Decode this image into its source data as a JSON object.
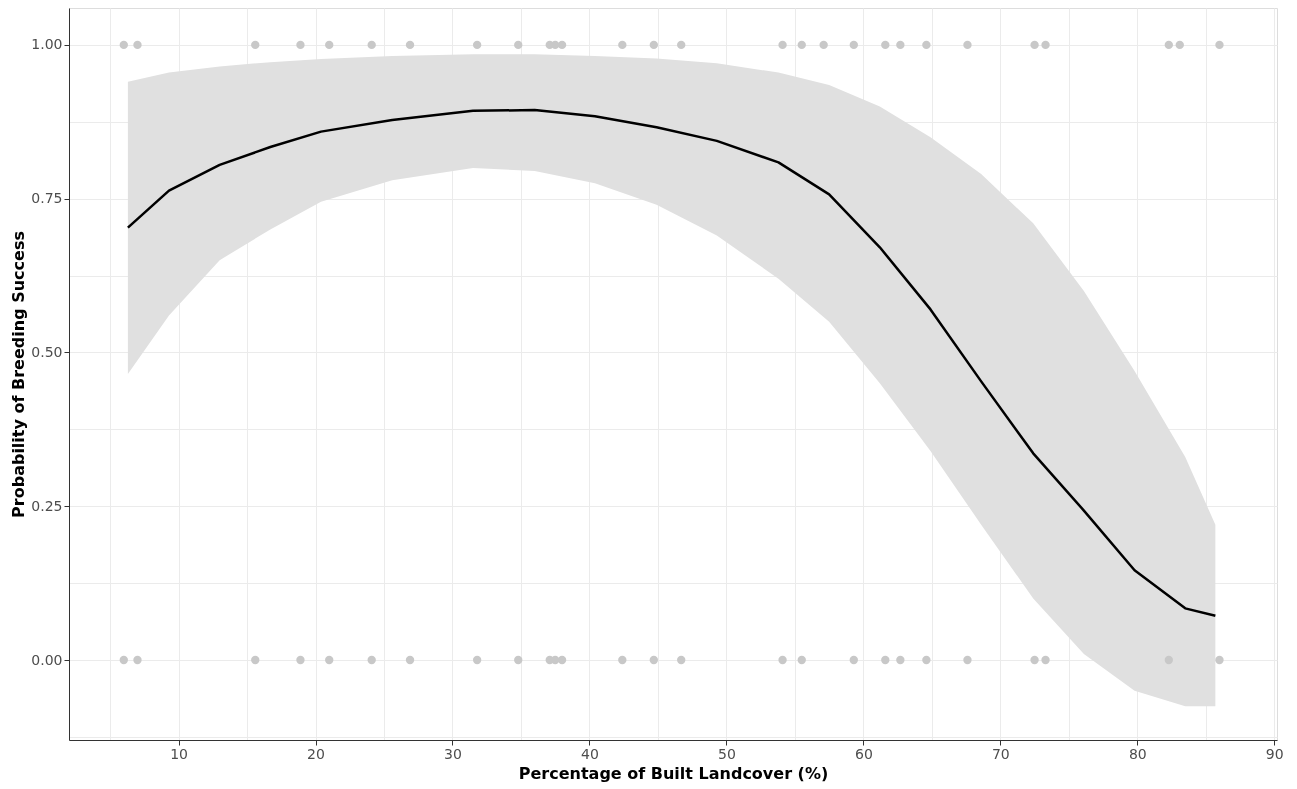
{
  "chart_data": {
    "type": "line",
    "xlabel": "Percentage of Built Landcover (%)",
    "ylabel": "Probability of Breeding Success",
    "xlim": [
      2,
      90.2
    ],
    "ylim": [
      -0.13,
      1.06
    ],
    "xticks": [
      {
        "value": 5,
        "label": null
      },
      10,
      {
        "value": 15,
        "label": null
      },
      20,
      {
        "value": 25,
        "label": null
      },
      30,
      {
        "value": 35,
        "label": null
      },
      40,
      {
        "value": 45,
        "label": null
      },
      50,
      {
        "value": 55,
        "label": null
      },
      60,
      {
        "value": 65,
        "label": null
      },
      70,
      {
        "value": 75,
        "label": null
      },
      80,
      {
        "value": 85,
        "label": null
      },
      90
    ],
    "yticks": [
      {
        "value": -0.125,
        "label": null
      },
      {
        "value": 0,
        "label": "0.00"
      },
      {
        "value": 0.125,
        "label": null
      },
      {
        "value": 0.25,
        "label": "0.25"
      },
      {
        "value": 0.375,
        "label": null
      },
      {
        "value": 0.5,
        "label": "0.50"
      },
      {
        "value": 0.625,
        "label": null
      },
      {
        "value": 0.75,
        "label": "0.75"
      },
      {
        "value": 0.875,
        "label": null
      },
      {
        "value": 1,
        "label": "1.00"
      }
    ],
    "grid": true,
    "line_style": "solid",
    "series": [
      {
        "color": "#000000",
        "marker": "none",
        "x": [
          6.3,
          9.3,
          13.0,
          16.7,
          20.4,
          25.6,
          31.5,
          36.0,
          40.4,
          44.9,
          49.3,
          53.8,
          57.5,
          61.2,
          64.9,
          68.6,
          72.4,
          76.1,
          79.8,
          83.5,
          85.7
        ],
        "values": [
          0.703,
          0.763,
          0.805,
          0.834,
          0.859,
          0.878,
          0.893,
          0.894,
          0.884,
          0.866,
          0.844,
          0.809,
          0.757,
          0.671,
          0.57,
          0.453,
          0.336,
          0.243,
          0.146,
          0.084,
          0.072
        ],
        "lower": [
          0.465,
          0.56,
          0.65,
          0.7,
          0.745,
          0.78,
          0.8,
          0.795,
          0.775,
          0.74,
          0.69,
          0.62,
          0.55,
          0.45,
          0.34,
          0.22,
          0.1,
          0.01,
          -0.05,
          -0.075,
          -0.075
        ],
        "upper": [
          0.94,
          0.955,
          0.965,
          0.972,
          0.977,
          0.982,
          0.985,
          0.985,
          0.982,
          0.978,
          0.97,
          0.955,
          0.935,
          0.9,
          0.85,
          0.79,
          0.71,
          0.6,
          0.47,
          0.33,
          0.22
        ]
      },
      {
        "type": "scatter",
        "color": "#c8c8c8",
        "marker": "circle",
        "x": [
          6.0,
          7.0,
          15.6,
          18.9,
          21.0,
          24.1,
          26.9,
          31.8,
          34.8,
          37.1,
          37.5,
          38.0,
          42.4,
          44.7,
          46.7,
          54.1,
          55.5,
          57.1,
          59.3,
          61.6,
          62.7,
          64.6,
          67.6,
          72.5,
          73.3,
          82.3,
          83.1,
          86.0
        ],
        "values": [
          1,
          1,
          1,
          1,
          1,
          1,
          1,
          1,
          1,
          1,
          1,
          1,
          1,
          1,
          1,
          1,
          1,
          1,
          1,
          1,
          1,
          1,
          1,
          1,
          1,
          1,
          1,
          1
        ]
      },
      {
        "type": "scatter",
        "color": "#c8c8c8",
        "marker": "circle",
        "x": [
          6.0,
          7.0,
          15.6,
          18.9,
          21.0,
          24.1,
          26.9,
          31.8,
          34.8,
          37.1,
          37.5,
          38.0,
          42.4,
          44.7,
          46.7,
          54.1,
          55.5,
          59.3,
          61.6,
          62.7,
          64.6,
          67.6,
          72.5,
          73.3,
          82.3,
          86.0
        ],
        "values": [
          0,
          0,
          0,
          0,
          0,
          0,
          0,
          0,
          0,
          0,
          0,
          0,
          0,
          0,
          0,
          0,
          0,
          0,
          0,
          0,
          0,
          0,
          0,
          0,
          0,
          0
        ]
      }
    ]
  }
}
